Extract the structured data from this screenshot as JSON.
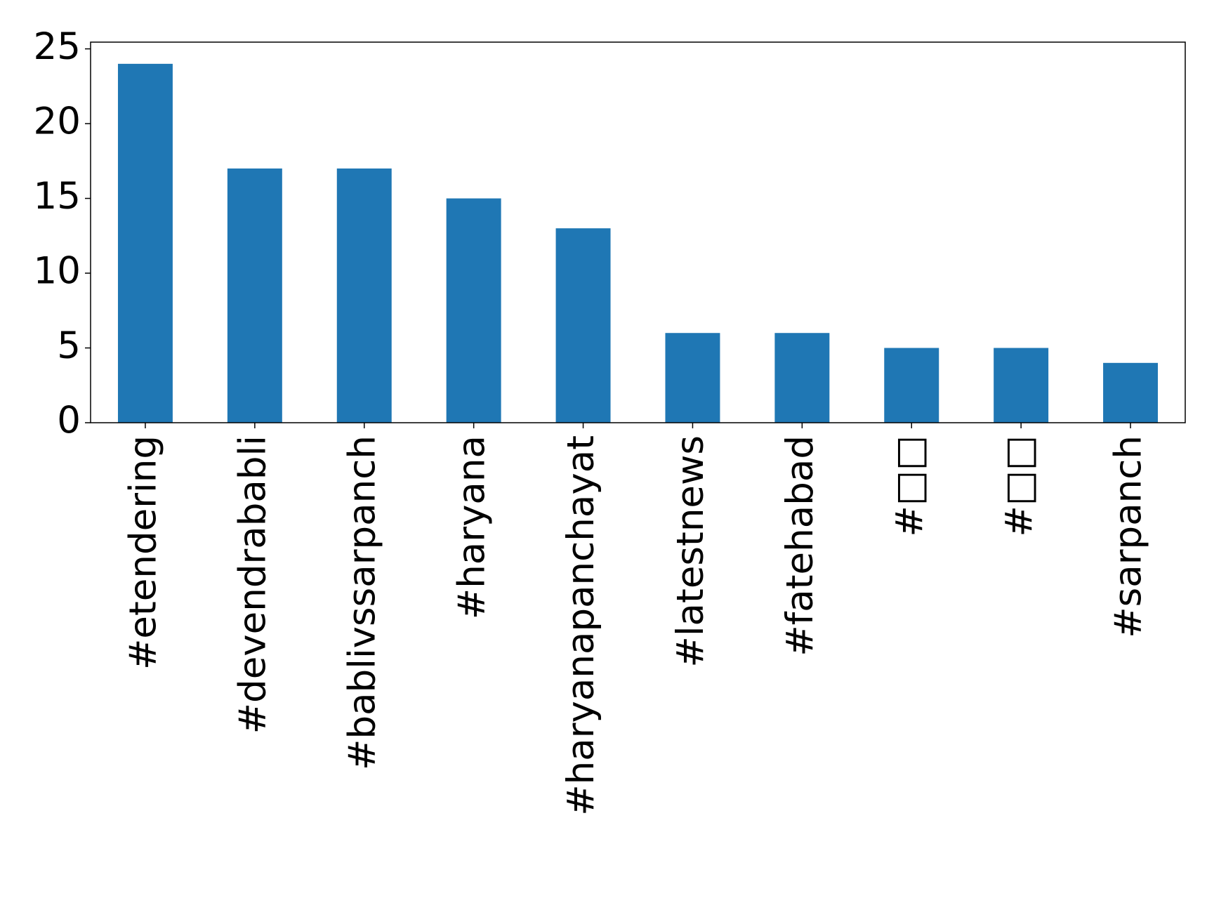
{
  "chart_data": {
    "type": "bar",
    "categories": [
      "#etendering",
      "#devendrababli",
      "#bablivssarpanch",
      "#haryana",
      "#haryanapanchayat",
      "#latestnews",
      "#fatehabad",
      "#□□",
      "#□□",
      "#sarpanch"
    ],
    "values": [
      24,
      17,
      17,
      15,
      13,
      6,
      6,
      5,
      5,
      4
    ],
    "color": "#1f77b4",
    "ylim": [
      0,
      25.45
    ],
    "yticks": [
      0,
      5,
      10,
      15,
      20,
      25
    ],
    "grid": false
  }
}
